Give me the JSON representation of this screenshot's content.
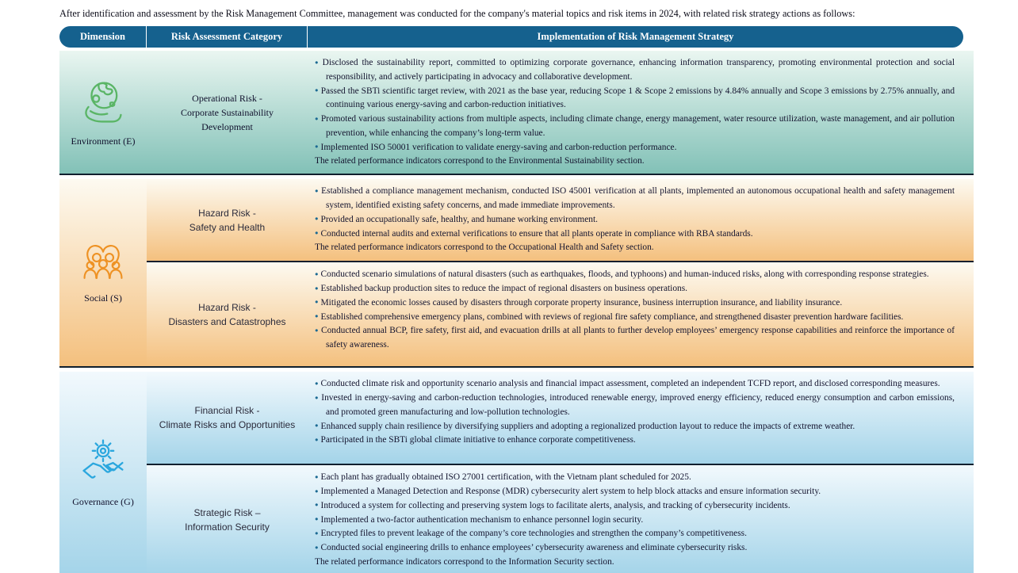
{
  "intro": "After identification and assessment by the Risk Management Committee, management was conducted for the company's material topics and risk items in 2024, with related risk strategy actions as follows:",
  "header": {
    "dimension": "Dimension",
    "category": "Risk Assessment Category",
    "strategy": "Implementation of Risk Management Strategy"
  },
  "colors": {
    "header_bg": "#15618e",
    "border_dark": "#101f2e",
    "bullet_dot": "#1c6a93",
    "bottom_bar": "#0f2438",
    "themes": {
      "env": {
        "top": "#eaf6f1",
        "bottom": "#82c1b7",
        "icon": "#5ab566"
      },
      "social": {
        "top": "#fdfaf1",
        "bottom": "#f4c07e",
        "icon": "#ee9224"
      },
      "gov": {
        "top": "#f2f9fd",
        "bottom": "#a4d4e9",
        "icon": "#2ba7de"
      }
    }
  },
  "sections": [
    {
      "dimension": "Environment (E)",
      "icon": "globe-in-hand-icon",
      "rows": [
        {
          "category_lines": [
            "Operational Risk -",
            "Corporate Sustainability",
            "Development"
          ],
          "bullets": [
            "Disclosed the sustainability report, committed to optimizing corporate governance, enhancing information transparency, promoting environmental protection and social responsibility, and actively participating in advocacy and collaborative development.",
            "Passed the SBTi scientific target review, with 2021 as the base year, reducing Scope 1 & Scope 2 emissions by 4.84% annually and Scope 3 emissions by 2.75% annually, and continuing various energy-saving and carbon-reduction initiatives.",
            "Promoted various sustainability actions from multiple aspects, including climate change, energy management, water resource utilization, waste management, and air pollution prevention, while enhancing the company’s long-term value.",
            "Implemented ISO 50001 verification to validate energy-saving and carbon-reduction performance."
          ],
          "footer": "The related performance indicators correspond to the Environmental Sustainability section."
        }
      ]
    },
    {
      "dimension": "Social (S)",
      "icon": "people-in-heart-icon",
      "rows": [
        {
          "category_lines": [
            "Hazard Risk -",
            "Safety and Health"
          ],
          "bullets": [
            "Established a compliance management mechanism, conducted ISO 45001 verification at all plants, implemented an autonomous occupational health and safety management system, identified existing safety concerns, and made immediate improvements.",
            "Provided an occupationally safe, healthy, and humane working environment.",
            "Conducted internal audits and external verifications to ensure that all plants operate in compliance with RBA standards."
          ],
          "footer": "The related performance indicators correspond to the Occupational Health and Safety section."
        },
        {
          "category_lines": [
            "Hazard Risk -",
            "Disasters and Catastrophes"
          ],
          "bullets": [
            "Conducted scenario simulations of natural disasters (such as earthquakes, floods, and typhoons) and human-induced risks, along with corresponding response strategies.",
            "Established backup production sites to reduce the impact of regional disasters on business operations.",
            "Mitigated the economic losses caused by disasters through corporate property insurance, business interruption insurance, and liability insurance.",
            "Established comprehensive emergency plans, combined with reviews of regional fire safety compliance, and strengthened disaster prevention hardware facilities.",
            "Conducted annual BCP, fire safety, first aid, and evacuation drills at all plants to further develop employees’ emergency response capabilities and reinforce the importance of safety awareness."
          ]
        }
      ]
    },
    {
      "dimension": "Governance (G)",
      "icon": "gear-handshake-icon",
      "rows": [
        {
          "category_lines": [
            "Financial Risk -",
            "Climate Risks and Opportunities"
          ],
          "bullets": [
            "Conducted climate risk and opportunity scenario analysis and financial impact assessment, completed an independent TCFD report, and disclosed corresponding measures.",
            "Invested in energy-saving and carbon-reduction technologies, introduced renewable energy, improved energy efficiency, reduced energy consumption and carbon emissions, and promoted green manufacturing and low-pollution technologies.",
            "Enhanced supply chain resilience by diversifying suppliers and adopting a regionalized production layout to reduce the impacts of extreme weather.",
            "Participated in the SBTi global climate initiative to enhance corporate competitiveness."
          ]
        },
        {
          "category_lines": [
            "Strategic Risk –",
            "Information Security"
          ],
          "bullets": [
            "Each plant has gradually obtained ISO 27001 certification, with the Vietnam plant scheduled for 2025.",
            "Implemented a Managed Detection and Response (MDR) cybersecurity alert system to help block attacks and ensure information security.",
            "Introduced a system for collecting and preserving system logs to facilitate alerts, analysis, and tracking of cybersecurity incidents.",
            "Implemented a two-factor authentication mechanism to enhance personnel login security.",
            "Encrypted files to prevent leakage of the company’s core technologies and strengthen the company’s competitiveness.",
            "Conducted social engineering drills to enhance employees’ cybersecurity awareness and eliminate cybersecurity risks."
          ],
          "footer": "The related performance indicators correspond to the Information Security section."
        }
      ]
    }
  ]
}
